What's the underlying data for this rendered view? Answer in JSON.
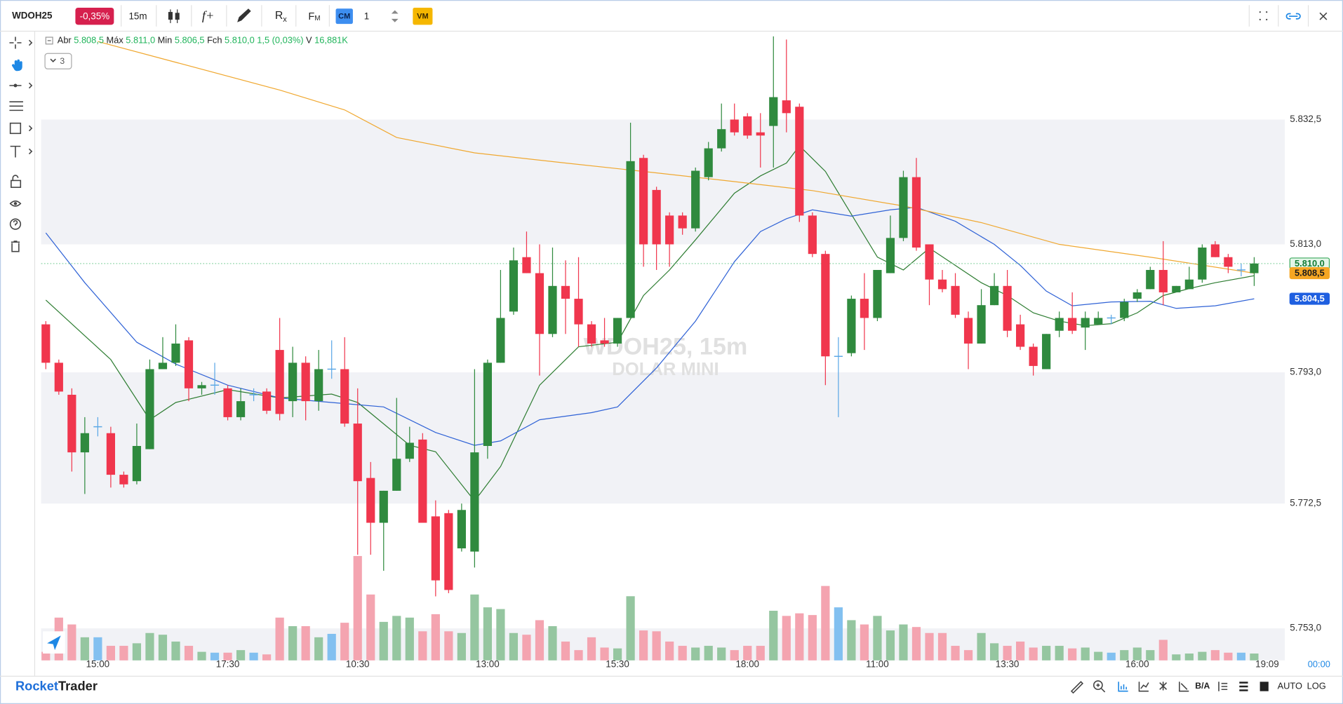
{
  "toolbar": {
    "symbol": "WDOH25",
    "change": "-0,35%",
    "timeframe": "15m",
    "function": "f+",
    "indicator_r": "R",
    "indicator_x": "x",
    "format_f": "F",
    "format_m": "M",
    "cm": "CM",
    "quantity": "1",
    "vm": "VM"
  },
  "legend": {
    "open_label": "Abr",
    "open": "5.808,5",
    "high_label": "Máx",
    "high": "5.811,0",
    "low_label": "Min",
    "low": "5.806,5",
    "close_label": "Fch",
    "close": "5.810,0",
    "change": "1,5 (0,03%)",
    "volume_label": "V",
    "volume": "16,881K",
    "collapsed_count": "3"
  },
  "watermark": {
    "line1": "WDOH25, 15m",
    "line2": "DOLAR MINI"
  },
  "chart_data": {
    "type": "candlestick",
    "categories": [
      null,
      null,
      null,
      null,
      "15:00",
      null,
      null,
      null,
      null,
      null,
      null,
      null,
      null,
      null,
      "17:30",
      null,
      null,
      null,
      null,
      null,
      null,
      null,
      null,
      null,
      "10:30",
      null,
      null,
      null,
      null,
      null,
      null,
      null,
      null,
      null,
      "13:00",
      null,
      null,
      null,
      null,
      null,
      null,
      null,
      null,
      null,
      "15:30",
      null,
      null,
      null,
      null,
      null,
      null,
      null,
      null,
      null,
      "18:00",
      null,
      null,
      null,
      null,
      null,
      null,
      null,
      null,
      null,
      "11:00",
      null,
      null,
      null,
      null,
      null,
      null,
      null,
      null,
      null,
      "13:30",
      null,
      null,
      null,
      null,
      null,
      null,
      null,
      null,
      null,
      "16:00",
      null,
      null,
      null,
      null,
      null,
      null,
      null,
      null,
      null
    ],
    "open": [
      5800.5,
      5794.5,
      5789.5,
      5780.5,
      5784.5,
      5783.5,
      5777.0,
      5776.0,
      5781.0,
      5793.5,
      5794.5,
      5798.0,
      5790.5,
      5791.0,
      5790.5,
      5786.0,
      5789.5,
      5790.0,
      5796.5,
      5788.5,
      5794.5,
      5788.5,
      5793.5,
      5793.5,
      5785.0,
      5776.5,
      5769.5,
      5774.5,
      5779.5,
      5782.5,
      5770.5,
      5771.0,
      5765.5,
      5765.0,
      5781.5,
      5794.5,
      5802.5,
      5811.0,
      5808.5,
      5799.0,
      5806.5,
      5804.5,
      5800.5,
      5798.0,
      5797.5,
      5801.5,
      5826.5,
      5821.5,
      5817.5,
      5817.5,
      5815.5,
      5823.5,
      5828.0,
      5832.5,
      5833.0,
      5830.5,
      5831.5,
      5835.5,
      5834.5,
      5817.5,
      5811.5,
      5795.5,
      5796.0,
      5804.5,
      5801.5,
      5808.5,
      5814.0,
      5823.5,
      5813.0,
      5807.5,
      5806.5,
      5801.5,
      5797.5,
      5803.5,
      5806.5,
      5800.5,
      5797.0,
      5793.5,
      5799.5,
      5801.5,
      5800.0,
      5800.5,
      5801.5,
      5801.5,
      5804.5,
      5806.0,
      5809.0,
      5805.5,
      5806.0,
      5807.5,
      5813.0,
      5811.0,
      5809.0,
      5808.5
    ],
    "high": [
      5801.0,
      5795.0,
      5790.5,
      5786.0,
      5786.0,
      5784.5,
      5777.5,
      5785.0,
      5795.0,
      5798.5,
      5800.5,
      5798.5,
      5791.5,
      5794.5,
      5791.0,
      5790.5,
      5790.5,
      5790.5,
      5801.5,
      5797.0,
      5795.5,
      5796.5,
      5798.0,
      5798.5,
      5790.5,
      5779.0,
      5774.5,
      5789.0,
      5784.5,
      5783.5,
      5773.0,
      5771.5,
      5772.5,
      5793.5,
      5795.0,
      5809.0,
      5812.5,
      5815.0,
      5813.0,
      5812.5,
      5810.5,
      5811.0,
      5801.0,
      5801.5,
      5801.5,
      5832.0,
      5827.0,
      5822.0,
      5818.0,
      5818.0,
      5825.0,
      5829.0,
      5835.0,
      5835.0,
      5833.5,
      5833.5,
      5845.5,
      5845.0,
      5835.0,
      5818.0,
      5812.0,
      5798.5,
      5805.0,
      5808.5,
      5809.0,
      5817.5,
      5824.5,
      5826.5,
      5813.0,
      5809.0,
      5808.5,
      5802.5,
      5806.0,
      5808.5,
      5809.0,
      5802.0,
      5797.5,
      5799.0,
      5802.5,
      5805.5,
      5802.5,
      5802.5,
      5802.0,
      5804.5,
      5806.0,
      5809.5,
      5813.5,
      5806.5,
      5809.5,
      5813.0,
      5813.5,
      5811.5,
      5810.0,
      5811.0
    ],
    "low": [
      5793.5,
      5789.5,
      5777.5,
      5774.0,
      5783.0,
      5775.0,
      5775.0,
      5775.5,
      5781.0,
      5793.5,
      5794.0,
      5788.5,
      5789.5,
      5789.5,
      5785.5,
      5785.5,
      5788.5,
      5786.5,
      5785.5,
      5786.0,
      5785.5,
      5787.0,
      5792.0,
      5784.5,
      5764.5,
      5764.5,
      5762.0,
      5774.5,
      5779.0,
      5769.5,
      5758.0,
      5758.5,
      5765.0,
      5762.5,
      5779.5,
      5794.5,
      5802.0,
      5808.5,
      5792.5,
      5798.5,
      5799.0,
      5797.0,
      5797.0,
      5797.0,
      5797.0,
      5801.5,
      5809.5,
      5809.0,
      5809.5,
      5814.5,
      5815.0,
      5823.0,
      5827.5,
      5830.0,
      5829.5,
      5825.0,
      5825.0,
      5830.5,
      5816.5,
      5811.0,
      5791.0,
      5786.0,
      5795.5,
      5796.5,
      5801.0,
      5808.5,
      5813.5,
      5812.0,
      5803.5,
      5805.5,
      5801.5,
      5793.5,
      5797.5,
      5803.5,
      5798.5,
      5796.5,
      5792.5,
      5793.5,
      5798.5,
      5799.0,
      5796.5,
      5800.5,
      5800.5,
      5801.0,
      5804.0,
      5806.0,
      5803.5,
      5805.5,
      5806.0,
      5807.0,
      5811.0,
      5808.5,
      5808.0,
      5806.5
    ],
    "close": [
      5794.5,
      5790.0,
      5780.5,
      5783.5,
      5784.5,
      5777.0,
      5775.5,
      5781.5,
      5793.5,
      5794.5,
      5797.5,
      5790.5,
      5791.0,
      5791.0,
      5786.0,
      5788.5,
      5789.5,
      5787.0,
      5786.5,
      5794.5,
      5788.5,
      5793.5,
      5793.5,
      5785.0,
      5776.0,
      5769.5,
      5774.5,
      5779.5,
      5782.0,
      5769.5,
      5760.5,
      5759.0,
      5771.5,
      5780.5,
      5794.5,
      5801.5,
      5810.5,
      5808.5,
      5799.0,
      5806.5,
      5804.5,
      5800.5,
      5797.5,
      5797.5,
      5801.5,
      5826.0,
      5813.0,
      5813.0,
      5813.0,
      5815.5,
      5824.5,
      5828.0,
      5831.0,
      5830.5,
      5830.0,
      5830.0,
      5836.0,
      5833.5,
      5817.5,
      5811.5,
      5795.5,
      5795.5,
      5804.5,
      5801.5,
      5809.0,
      5814.0,
      5823.5,
      5812.5,
      5807.5,
      5806.0,
      5802.0,
      5797.5,
      5803.5,
      5806.5,
      5799.5,
      5797.0,
      5794.0,
      5799.0,
      5801.5,
      5799.5,
      5801.5,
      5801.5,
      5801.5,
      5804.0,
      5805.5,
      5809.0,
      5805.5,
      5806.5,
      5807.5,
      5812.5,
      5811.0,
      5809.5,
      5809.0,
      5810.0
    ],
    "volume": [
      10,
      50,
      42,
      27,
      27,
      17,
      17,
      20,
      32,
      30,
      22,
      17,
      10,
      9,
      9,
      12,
      9,
      7,
      50,
      40,
      40,
      27,
      31,
      44,
      122,
      77,
      45,
      52,
      50,
      34,
      54,
      34,
      32,
      77,
      62,
      60,
      32,
      30,
      47,
      40,
      22,
      12,
      27,
      15,
      14,
      75,
      35,
      34,
      22,
      17,
      15,
      17,
      15,
      12,
      17,
      17,
      58,
      52,
      55,
      53,
      87,
      62,
      47,
      42,
      52,
      35,
      42,
      39,
      32,
      32,
      17,
      12,
      32,
      20,
      17,
      22,
      15,
      17,
      17,
      14,
      15,
      10,
      9,
      12,
      15,
      12,
      24,
      7,
      8,
      10,
      12,
      9,
      9,
      8
    ],
    "up_color": "#2f8a3e",
    "down_color": "#f0364d",
    "flat_color": "#5aa7e6",
    "volume_up_color": "#95c6a0",
    "volume_down_color": "#f4a4b0",
    "volume_flat_color": "#82c0f0",
    "band_color": "#f1f2f6",
    "ylim": [
      5748,
      5846.5
    ],
    "yticks": [
      {
        "value": 5832.5,
        "label": "5.832,5"
      },
      {
        "value": 5813.0,
        "label": "5.813,0"
      },
      {
        "value": 5793.0,
        "label": "5.793,0"
      },
      {
        "value": 5772.5,
        "label": "5.772,5"
      },
      {
        "value": 5753.0,
        "label": "5.753,0"
      }
    ],
    "indicators": [
      {
        "color": "#2e7d32",
        "x": [
          0,
          5,
          8,
          10,
          14,
          18,
          22,
          24,
          28,
          30,
          33,
          35,
          38,
          41,
          44,
          46,
          48,
          50,
          53,
          55,
          57,
          58,
          60,
          62,
          64,
          66,
          68,
          70,
          72,
          74,
          76,
          78,
          80,
          82,
          84,
          86,
          88,
          90,
          93
        ],
        "values": [
          5804.3,
          5795.0,
          5785.6,
          5788.3,
          5790.3,
          5789.0,
          5789.6,
          5788.3,
          5781.6,
          5780.6,
          5772.9,
          5778.3,
          5791.0,
          5797.0,
          5797.7,
          5805.0,
          5809.0,
          5813.7,
          5821.0,
          5823.7,
          5825.7,
          5828.4,
          5824.4,
          5817.7,
          5811.0,
          5809.0,
          5812.4,
          5809.7,
          5807.0,
          5805.0,
          5802.3,
          5801.0,
          5800.3,
          5800.6,
          5802.3,
          5805.0,
          5806.1,
          5807.0,
          5808.1
        ]
      },
      {
        "color": "#2f62d6",
        "x": [
          0,
          3,
          7,
          10,
          14,
          18,
          22,
          26,
          30,
          33,
          35,
          38,
          42,
          44,
          47,
          50,
          53,
          55,
          57,
          59,
          62,
          65,
          67,
          70,
          73,
          75,
          77,
          79,
          82,
          85,
          87,
          90,
          93
        ],
        "values": [
          5814.8,
          5807.0,
          5797.7,
          5794.3,
          5791.0,
          5789.0,
          5788.3,
          5787.6,
          5783.6,
          5781.6,
          5782.3,
          5785.6,
          5786.7,
          5787.6,
          5793.7,
          5801.0,
          5810.3,
          5815.0,
          5817.0,
          5818.4,
          5817.4,
          5818.4,
          5818.8,
          5816.6,
          5813.0,
          5809.7,
          5805.7,
          5803.4,
          5804.0,
          5804.1,
          5803.0,
          5803.4,
          5804.5
        ]
      },
      {
        "color": "#f0a830",
        "x": [
          4,
          18,
          23,
          27,
          33,
          40,
          46,
          53,
          59,
          66,
          72,
          78,
          85,
          93
        ],
        "values": [
          5844.7,
          5837.1,
          5834.0,
          5829.7,
          5827.3,
          5825.7,
          5824.4,
          5822.8,
          5821.4,
          5819.0,
          5816.4,
          5813.0,
          5811.0,
          5808.5
        ]
      }
    ],
    "price_labels": [
      {
        "value": 5810.0,
        "label": "5.810,0",
        "color": "#e3f6e8",
        "text_color": "#127a33",
        "border": "#3aa85c",
        "line": true
      },
      {
        "value": 5808.5,
        "label": "5.808,5",
        "color": "#f5a623",
        "text_color": "#1a1a1a",
        "border": "#f5a623",
        "line": false
      },
      {
        "value": 5804.5,
        "label": "5.804,5",
        "color": "#1f5fe0",
        "text_color": "#ffffff",
        "border": "#1f5fe0",
        "line": false
      }
    ],
    "current_time_label": "19:09",
    "axis_corner_label": "00:00"
  },
  "footer": {
    "brand_rocket": "Rocket",
    "brand_trader": "Trader",
    "bid_ask": "B/A",
    "auto": "AUTO",
    "log": "LOG"
  }
}
